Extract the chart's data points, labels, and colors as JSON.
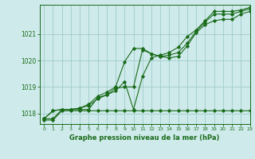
{
  "title": "Graphe pression niveau de la mer (hPa)",
  "bg_color": "#ceeaea",
  "grid_color": "#a0cccc",
  "line_color": "#1a6b1a",
  "xlim": [
    -0.5,
    23
  ],
  "ylim": [
    1017.6,
    1022.1
  ],
  "xticks": [
    0,
    1,
    2,
    3,
    4,
    5,
    6,
    7,
    8,
    9,
    10,
    11,
    12,
    13,
    14,
    15,
    16,
    17,
    18,
    19,
    20,
    21,
    22,
    23
  ],
  "yticks": [
    1018,
    1019,
    1020,
    1021
  ],
  "series": [
    [
      1017.8,
      1017.8,
      1018.15,
      1018.15,
      1018.15,
      1018.15,
      1018.6,
      1018.7,
      1018.85,
      1019.2,
      1018.15,
      1019.4,
      1020.1,
      1020.2,
      1020.3,
      1020.5,
      1020.9,
      1021.15,
      1021.5,
      1021.85,
      1021.85,
      1021.85,
      1021.9,
      1022.0
    ],
    [
      1017.8,
      1018.1,
      1018.15,
      1018.15,
      1018.2,
      1018.35,
      1018.65,
      1018.8,
      1019.0,
      1019.95,
      1020.45,
      1020.45,
      1020.25,
      1020.15,
      1020.2,
      1020.3,
      1020.65,
      1021.1,
      1021.45,
      1021.75,
      1021.75,
      1021.75,
      1021.85,
      1021.95
    ],
    [
      1017.8,
      1018.1,
      1018.15,
      1018.15,
      1018.2,
      1018.3,
      1018.55,
      1018.7,
      1018.95,
      1019.0,
      1019.0,
      1020.4,
      1020.25,
      1020.15,
      1020.1,
      1020.15,
      1020.55,
      1021.05,
      1021.35,
      1021.5,
      1021.55,
      1021.55,
      1021.75,
      1021.85
    ],
    [
      1017.75,
      1017.75,
      1018.1,
      1018.1,
      1018.1,
      1018.1,
      1018.1,
      1018.1,
      1018.1,
      1018.1,
      1018.1,
      1018.1,
      1018.1,
      1018.1,
      1018.1,
      1018.1,
      1018.1,
      1018.1,
      1018.1,
      1018.1,
      1018.1,
      1018.1,
      1018.1,
      1018.1
    ]
  ]
}
